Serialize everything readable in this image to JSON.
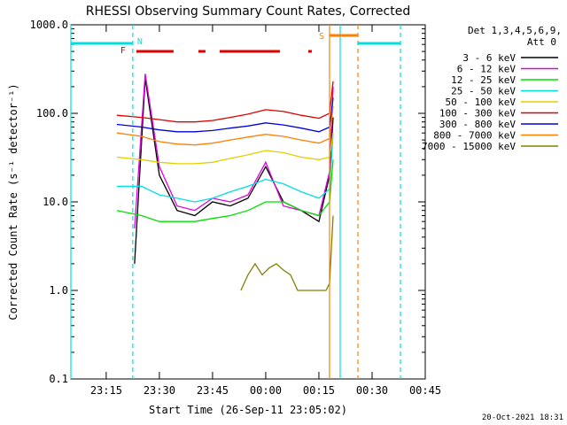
{
  "chart_data": {
    "type": "line",
    "title": "RHESSI Observing Summary Count Rates, Corrected",
    "xlabel": "Start Time (26-Sep-11 23:05:02)",
    "ylabel": "Corrected Count Rate (s⁻¹ detector⁻¹)",
    "yscale": "log",
    "ylim": [
      0.1,
      1000.0
    ],
    "x_start": "23:05:02",
    "x_end": "00:45:00",
    "x_ticks": [
      "23:15",
      "23:30",
      "23:45",
      "00:00",
      "00:15",
      "00:30",
      "00:45"
    ],
    "y_ticks": [
      "0.1",
      "1.0",
      "10.0",
      "100.0",
      "1000.0"
    ],
    "grid": false,
    "legend_position": "right",
    "legend_header": [
      "Det 1,3,4,5,6,9,",
      "Att 0"
    ],
    "series": [
      {
        "name": "3 - 6 keV",
        "color": "#000000",
        "x": [
          "23:23:00",
          "23:26:00",
          "23:30:00",
          "23:35:00",
          "23:40:00",
          "23:45:00",
          "23:50:00",
          "23:55:00",
          "00:00:00",
          "00:05:00",
          "00:10:00",
          "00:15:00",
          "00:18:00",
          "00:19:00"
        ],
        "y": [
          2.0,
          250,
          20,
          8,
          7,
          10,
          9,
          11,
          25,
          10,
          8,
          6,
          20,
          90
        ]
      },
      {
        "name": "6 - 12 keV",
        "color": "#e000e0",
        "x": [
          "23:23:00",
          "23:26:00",
          "23:30:00",
          "23:35:00",
          "23:40:00",
          "23:45:00",
          "23:50:00",
          "23:55:00",
          "00:00:00",
          "00:05:00",
          "00:10:00",
          "00:15:00",
          "00:18:00",
          "00:19:00"
        ],
        "y": [
          5,
          280,
          25,
          9,
          8,
          11,
          10,
          12,
          28,
          9,
          8,
          7,
          22,
          200
        ]
      },
      {
        "name": "12 - 25 keV",
        "color": "#00e000",
        "x": [
          "23:18:00",
          "23:25:00",
          "23:30:00",
          "23:35:00",
          "23:40:00",
          "23:45:00",
          "23:50:00",
          "23:55:00",
          "00:00:00",
          "00:05:00",
          "00:10:00",
          "00:15:00",
          "00:18:00",
          "00:19:00"
        ],
        "y": [
          8,
          7,
          6,
          6,
          6,
          6.5,
          7,
          8,
          10,
          10,
          8,
          7,
          10,
          30
        ]
      },
      {
        "name": "25 - 50 keV",
        "color": "#00e0e0",
        "x": [
          "23:18:00",
          "23:25:00",
          "23:30:00",
          "23:35:00",
          "23:40:00",
          "23:45:00",
          "23:50:00",
          "23:55:00",
          "00:00:00",
          "00:05:00",
          "00:10:00",
          "00:15:00",
          "00:18:00",
          "00:19:00"
        ],
        "y": [
          15,
          15,
          12,
          11,
          10,
          11,
          13,
          15,
          18,
          16,
          13,
          11,
          14,
          60
        ]
      },
      {
        "name": "50 - 100 keV",
        "color": "#e0d000",
        "x": [
          "23:18:00",
          "23:25:00",
          "23:30:00",
          "23:35:00",
          "23:40:00",
          "23:45:00",
          "23:50:00",
          "23:55:00",
          "00:00:00",
          "00:05:00",
          "00:10:00",
          "00:15:00",
          "00:18:00",
          "00:19:00"
        ],
        "y": [
          32,
          30,
          28,
          27,
          27,
          28,
          31,
          34,
          38,
          36,
          32,
          30,
          32,
          60
        ]
      },
      {
        "name": "100 - 300 keV",
        "color": "#e00000",
        "x": [
          "23:18:00",
          "23:25:00",
          "23:30:00",
          "23:35:00",
          "23:40:00",
          "23:45:00",
          "23:50:00",
          "23:55:00",
          "00:00:00",
          "00:05:00",
          "00:10:00",
          "00:15:00",
          "00:18:00",
          "00:19:00"
        ],
        "y": [
          95,
          90,
          85,
          80,
          80,
          83,
          90,
          98,
          110,
          105,
          95,
          88,
          100,
          230
        ]
      },
      {
        "name": "300 - 800 keV",
        "color": "#0000e0",
        "x": [
          "23:18:00",
          "23:25:00",
          "23:30:00",
          "23:35:00",
          "23:40:00",
          "23:45:00",
          "23:50:00",
          "23:55:00",
          "00:00:00",
          "00:05:00",
          "00:10:00",
          "00:15:00",
          "00:18:00",
          "00:19:00"
        ],
        "y": [
          75,
          70,
          65,
          62,
          62,
          64,
          68,
          72,
          78,
          74,
          68,
          62,
          70,
          150
        ]
      },
      {
        "name": "800 - 7000 keV",
        "color": "#ff8000",
        "x": [
          "23:18:00",
          "23:25:00",
          "23:30:00",
          "23:35:00",
          "23:40:00",
          "23:45:00",
          "23:50:00",
          "23:55:00",
          "00:00:00",
          "00:05:00",
          "00:10:00",
          "00:15:00",
          "00:18:00",
          "00:19:00"
        ],
        "y": [
          60,
          55,
          48,
          45,
          44,
          46,
          50,
          54,
          58,
          55,
          50,
          46,
          52,
          120
        ]
      },
      {
        "name": "7000 - 15000 keV",
        "color": "#808000",
        "x": [
          "23:53:00",
          "23:55:00",
          "23:57:00",
          "23:59:00",
          "00:01:00",
          "00:03:00",
          "00:05:00",
          "00:07:00",
          "00:09:00",
          "00:14:00",
          "00:17:00",
          "00:18:00",
          "00:19:00"
        ],
        "y": [
          1.0,
          1.5,
          2.0,
          1.5,
          1.8,
          2.0,
          1.7,
          1.5,
          1.0,
          1.0,
          1.0,
          1.2,
          7
        ]
      }
    ],
    "annotations": [
      {
        "text": "N",
        "x": "23:23:00",
        "color": "#00e0e0"
      },
      {
        "text": "F",
        "x": "23:22:00",
        "color": "#e00000"
      },
      {
        "text": "S",
        "x": "00:18:00",
        "color": "#ff8000"
      }
    ],
    "flag_bars": [
      {
        "name": "F",
        "color": "#e00000",
        "ranges": [
          [
            "23:23:30",
            "23:34:00"
          ],
          [
            "23:41:00",
            "23:43:00"
          ],
          [
            "23:47:00",
            "24:04:00"
          ],
          [
            "24:12:00",
            "24:13:00"
          ]
        ]
      },
      {
        "name": "S",
        "color": "#ff8000",
        "ranges": [
          [
            "24:18:00",
            "24:26:00"
          ]
        ]
      },
      {
        "name": "N",
        "color": "#00e0e0",
        "ranges": [
          [
            "23:05:02",
            "23:22:30"
          ],
          [
            "24:26:00",
            "24:38:00"
          ]
        ]
      }
    ],
    "vlines": [
      {
        "x": "23:05:02",
        "color": "#00e0e0",
        "style": "solid"
      },
      {
        "x": "23:22:30",
        "color": "#00e0e0",
        "style": "dashed"
      },
      {
        "x": "24:18:00",
        "color": "#ff8000",
        "style": "solid"
      },
      {
        "x": "24:21:00",
        "color": "#00e0e0",
        "style": "solid"
      },
      {
        "x": "24:26:00",
        "color": "#ff8000",
        "style": "dashed"
      },
      {
        "x": "24:38:00",
        "color": "#00e0e0",
        "style": "dashed"
      }
    ],
    "footer_date": "20-Oct-2021 18:31"
  }
}
